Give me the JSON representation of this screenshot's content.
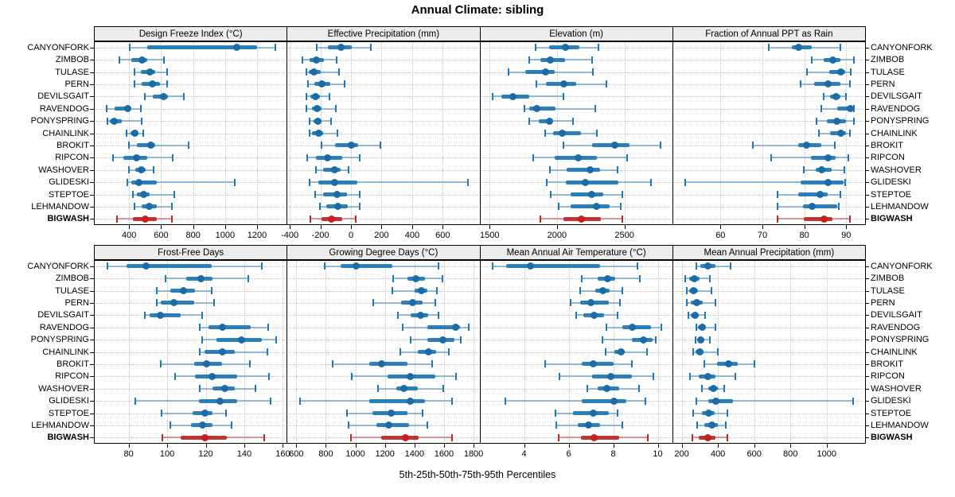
{
  "title": "Annual Climate: sibling",
  "caption": "5th-25th-50th-75th-95th Percentiles",
  "colors": {
    "blue": "#1f77b4",
    "blue_dot": "#1a6ca6",
    "red": "#bf2626",
    "red_dot": "#c81e1e",
    "strip_bg": "#ececec",
    "grid": "#c3c3c3"
  },
  "chart_data": {
    "type": "dot-whisker-trellis",
    "percentiles": [
      5,
      25,
      50,
      75,
      95
    ],
    "legend_note": "thin line = 5th-95th, thick bar = 25th-75th, dot = 50th percentile",
    "highlight_site": "BIGWASH",
    "sites": [
      "CANYONFORK",
      "ZIMBOB",
      "TULASE",
      "PERN",
      "DEVILSGAIT",
      "RAVENDOG",
      "PONYSPRING",
      "CHAINLINK",
      "BROKIT",
      "RIPCON",
      "WASHOVER",
      "GLIDESKI",
      "STEPTOE",
      "LEHMANDOW",
      "BIGWASH"
    ],
    "panels": [
      {
        "label": "Design Freeze Index (°C)",
        "row": 0,
        "col": 0,
        "domain": [
          180,
          1385
        ],
        "ticks": [
          400,
          600,
          800,
          1000,
          1200
        ],
        "values": [
          [
            405,
            515,
            1075,
            1200,
            1315
          ],
          [
            340,
            415,
            480,
            515,
            620
          ],
          [
            435,
            475,
            530,
            565,
            640
          ],
          [
            435,
            480,
            545,
            595,
            640
          ],
          [
            500,
            550,
            615,
            645,
            740
          ],
          [
            260,
            310,
            390,
            410,
            475
          ],
          [
            265,
            280,
            305,
            355,
            480
          ],
          [
            385,
            410,
            435,
            460,
            490
          ],
          [
            400,
            450,
            535,
            565,
            770
          ],
          [
            300,
            365,
            445,
            515,
            670
          ],
          [
            400,
            440,
            475,
            505,
            555
          ],
          [
            390,
            415,
            460,
            575,
            1060
          ],
          [
            425,
            450,
            490,
            530,
            680
          ],
          [
            435,
            480,
            525,
            575,
            665
          ],
          [
            325,
            425,
            500,
            575,
            665
          ]
        ]
      },
      {
        "label": "Effective Precipitation (mm)",
        "row": 0,
        "col": 1,
        "domain": [
          -420,
          840
        ],
        "ticks": [
          -400,
          -200,
          0,
          200,
          400,
          600
        ],
        "values": [
          [
            -225,
            -150,
            -65,
            5,
            130
          ],
          [
            -315,
            -270,
            -225,
            -175,
            -95
          ],
          [
            -290,
            -275,
            -240,
            -200,
            -80
          ],
          [
            -280,
            -240,
            -190,
            -135,
            -40
          ],
          [
            -290,
            -265,
            -230,
            -205,
            -140
          ],
          [
            -290,
            -255,
            -220,
            -195,
            -100
          ],
          [
            -270,
            -245,
            -215,
            -190,
            -130
          ],
          [
            -270,
            -255,
            -210,
            -180,
            -90
          ],
          [
            -195,
            -105,
            5,
            45,
            190
          ],
          [
            -285,
            -230,
            -155,
            -55,
            55
          ],
          [
            -230,
            -180,
            -105,
            -70,
            -15
          ],
          [
            -270,
            -215,
            -105,
            40,
            765
          ],
          [
            -235,
            -180,
            -90,
            -25,
            55
          ],
          [
            -205,
            -160,
            -85,
            -20,
            55
          ],
          [
            -265,
            -190,
            -130,
            -55,
            30
          ]
        ]
      },
      {
        "label": "Elevation (m)",
        "row": 0,
        "col": 2,
        "domain": [
          1425,
          2855
        ],
        "ticks": [
          1500,
          2000,
          2500
        ],
        "values": [
          [
            1840,
            1940,
            2065,
            2165,
            2310
          ],
          [
            1795,
            1875,
            1950,
            2060,
            2260
          ],
          [
            1640,
            1765,
            1915,
            1985,
            2265
          ],
          [
            1845,
            1920,
            2050,
            2145,
            2365
          ],
          [
            1525,
            1590,
            1670,
            1795,
            2050
          ],
          [
            1760,
            1795,
            1850,
            1990,
            2285
          ],
          [
            1795,
            1865,
            1945,
            1970,
            2120
          ],
          [
            1910,
            1970,
            2040,
            2175,
            2295
          ],
          [
            2050,
            2260,
            2430,
            2535,
            2770
          ],
          [
            1825,
            1980,
            2155,
            2295,
            2520
          ],
          [
            1950,
            2070,
            2245,
            2320,
            2450
          ],
          [
            1925,
            2065,
            2210,
            2455,
            2695
          ],
          [
            1955,
            2100,
            2260,
            2345,
            2485
          ],
          [
            2010,
            2100,
            2290,
            2390,
            2475
          ],
          [
            1875,
            2050,
            2180,
            2325,
            2485
          ]
        ]
      },
      {
        "label": "Fraction of Annual PPT as Rain",
        "row": 0,
        "col": 3,
        "domain": [
          48.5,
          94.5
        ],
        "ticks": [
          60,
          70,
          80,
          90
        ],
        "values": [
          [
            71.6,
            77.0,
            78.7,
            81.8,
            88.7
          ],
          [
            81.8,
            84.6,
            86.8,
            88.7,
            91.8
          ],
          [
            80.6,
            85.9,
            88.7,
            89.7,
            91.1
          ],
          [
            79.2,
            82.4,
            85.7,
            88.7,
            90.8
          ],
          [
            84.6,
            86.2,
            87.6,
            88.6,
            90.0
          ],
          [
            84.0,
            87.8,
            90.9,
            91.6,
            91.9
          ],
          [
            83.0,
            85.3,
            87.8,
            90.0,
            91.8
          ],
          [
            83.5,
            86.1,
            88.7,
            90.0,
            90.8
          ],
          [
            67.8,
            78.5,
            80.6,
            84.0,
            87.3
          ],
          [
            72.0,
            81.6,
            85.6,
            87.5,
            90.6
          ],
          [
            79.9,
            82.7,
            84.2,
            86.5,
            89.5
          ],
          [
            51.6,
            79.2,
            85.7,
            89.4,
            89.8
          ],
          [
            73.7,
            78.6,
            83.8,
            85.6,
            88.6
          ],
          [
            73.7,
            79.7,
            81.8,
            87.8,
            88.2
          ],
          [
            73.7,
            79.9,
            84.8,
            86.7,
            90.8
          ]
        ]
      },
      {
        "label": "Frost-Free Days",
        "row": 1,
        "col": 0,
        "domain": [
          62,
          162
        ],
        "ticks": [
          80,
          100,
          120,
          140,
          160
        ],
        "values": [
          [
            69,
            79,
            89,
            123,
            149
          ],
          [
            99,
            110,
            117.5,
            123.5,
            142
          ],
          [
            94.5,
            101.5,
            108.5,
            114.5,
            123
          ],
          [
            94.5,
            96.5,
            103.5,
            114,
            124.5
          ],
          [
            88.5,
            91,
            96.5,
            107,
            118
          ],
          [
            117,
            121.5,
            128.5,
            143.5,
            152.5
          ],
          [
            118,
            125.5,
            138.5,
            149,
            156.5
          ],
          [
            117,
            119.5,
            128.5,
            135,
            152
          ],
          [
            96.5,
            114,
            120.5,
            128.5,
            143
          ],
          [
            104,
            114.5,
            123.5,
            136.5,
            153
          ],
          [
            117,
            123.5,
            130,
            135,
            146
          ],
          [
            83.5,
            116.5,
            127.5,
            136.5,
            153.5
          ],
          [
            97,
            113,
            119.5,
            123.5,
            130.5
          ],
          [
            101.5,
            112.5,
            118.5,
            123.5,
            133.5
          ],
          [
            97.5,
            107,
            119.5,
            131,
            150.5
          ]
        ]
      },
      {
        "label": "Growing Degree Days (°C)",
        "row": 1,
        "col": 1,
        "domain": [
          535,
          1840
        ],
        "ticks": [
          600,
          800,
          1000,
          1200,
          1400,
          1600,
          1800
        ],
        "values": [
          [
            790,
            900,
            1005,
            1250,
            1565
          ],
          [
            1255,
            1355,
            1410,
            1470,
            1590
          ],
          [
            1250,
            1400,
            1445,
            1485,
            1550
          ],
          [
            1120,
            1310,
            1390,
            1455,
            1540
          ],
          [
            1290,
            1375,
            1440,
            1490,
            1565
          ],
          [
            1320,
            1485,
            1680,
            1710,
            1765
          ],
          [
            1375,
            1485,
            1590,
            1670,
            1715
          ],
          [
            1305,
            1420,
            1495,
            1545,
            1630
          ],
          [
            845,
            1095,
            1180,
            1355,
            1520
          ],
          [
            975,
            1220,
            1370,
            1540,
            1680
          ],
          [
            1155,
            1275,
            1330,
            1425,
            1595
          ],
          [
            625,
            1095,
            1370,
            1470,
            1655
          ],
          [
            945,
            1115,
            1240,
            1355,
            1455
          ],
          [
            955,
            1145,
            1225,
            1365,
            1485
          ],
          [
            970,
            1175,
            1340,
            1430,
            1655
          ]
        ]
      },
      {
        "label": "Mean Annual Air Temperature (°C)",
        "row": 1,
        "col": 2,
        "domain": [
          2.0,
          10.65
        ],
        "ticks": [
          4,
          6,
          8,
          10
        ],
        "values": [
          [
            2.6,
            3.2,
            4.3,
            7.4,
            9.1
          ],
          [
            6.6,
            7.3,
            7.75,
            8.1,
            9.2
          ],
          [
            6.5,
            7.2,
            7.55,
            7.85,
            8.4
          ],
          [
            6.1,
            6.5,
            7.0,
            7.8,
            8.3
          ],
          [
            6.35,
            6.65,
            7.15,
            7.6,
            8.2
          ],
          [
            7.7,
            8.4,
            8.85,
            9.7,
            10.15
          ],
          [
            7.5,
            8.85,
            9.35,
            9.75,
            9.9
          ],
          [
            7.65,
            8.05,
            8.35,
            8.5,
            9.5
          ],
          [
            4.95,
            6.6,
            7.1,
            8.0,
            8.85
          ],
          [
            5.6,
            7.05,
            7.9,
            8.85,
            9.8
          ],
          [
            6.85,
            7.3,
            7.7,
            8.25,
            9.15
          ],
          [
            3.15,
            6.6,
            8.05,
            8.6,
            9.45
          ],
          [
            5.4,
            6.2,
            7.1,
            7.8,
            8.2
          ],
          [
            5.45,
            6.4,
            6.9,
            7.4,
            8.4
          ],
          [
            5.55,
            6.55,
            7.15,
            8.25,
            9.55
          ]
        ]
      },
      {
        "label": "Mean Annual Precipitation (mm)",
        "row": 1,
        "col": 3,
        "domain": [
          148,
          1212
        ],
        "ticks": [
          200,
          400,
          600,
          800,
          1000
        ],
        "values": [
          [
            280,
            305,
            345,
            385,
            470
          ],
          [
            220,
            240,
            270,
            300,
            355
          ],
          [
            230,
            240,
            265,
            290,
            365
          ],
          [
            230,
            250,
            285,
            315,
            385
          ],
          [
            235,
            250,
            275,
            295,
            330
          ],
          [
            280,
            290,
            315,
            335,
            385
          ],
          [
            275,
            290,
            305,
            325,
            355
          ],
          [
            265,
            275,
            300,
            320,
            400
          ],
          [
            325,
            395,
            460,
            510,
            600
          ],
          [
            245,
            295,
            345,
            385,
            495
          ],
          [
            310,
            345,
            375,
            400,
            435
          ],
          [
            280,
            345,
            390,
            485,
            1145
          ],
          [
            265,
            310,
            350,
            380,
            450
          ],
          [
            285,
            325,
            365,
            400,
            445
          ],
          [
            260,
            295,
            345,
            385,
            450
          ]
        ]
      }
    ]
  }
}
